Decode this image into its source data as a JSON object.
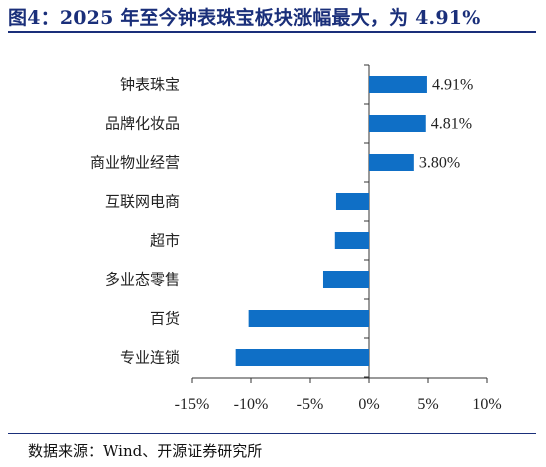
{
  "title": "图4：2025 年至今钟表珠宝板块涨幅最大，为 4.91%",
  "source": "数据来源：Wind、开源证券研究所",
  "chart_data": {
    "type": "bar",
    "orientation": "horizontal",
    "categories": [
      "钟表珠宝",
      "品牌化妆品",
      "商业物业经营",
      "互联网电商",
      "超市",
      "多业态零售",
      "百货",
      "专业连锁"
    ],
    "values": [
      4.91,
      4.81,
      3.8,
      -2.8,
      -2.9,
      -3.9,
      -10.2,
      -11.3
    ],
    "data_labels": [
      "4.91%",
      "4.81%",
      "3.80%",
      "",
      "",
      "",
      "",
      ""
    ],
    "xlim": [
      -15,
      10
    ],
    "xticks": [
      -15,
      -10,
      -5,
      0,
      5,
      10
    ],
    "xtick_labels": [
      "-15%",
      "-10%",
      "-5%",
      "0%",
      "5%",
      "10%"
    ],
    "bar_color": "#0f6fc6",
    "grid": false,
    "legend": "none"
  }
}
